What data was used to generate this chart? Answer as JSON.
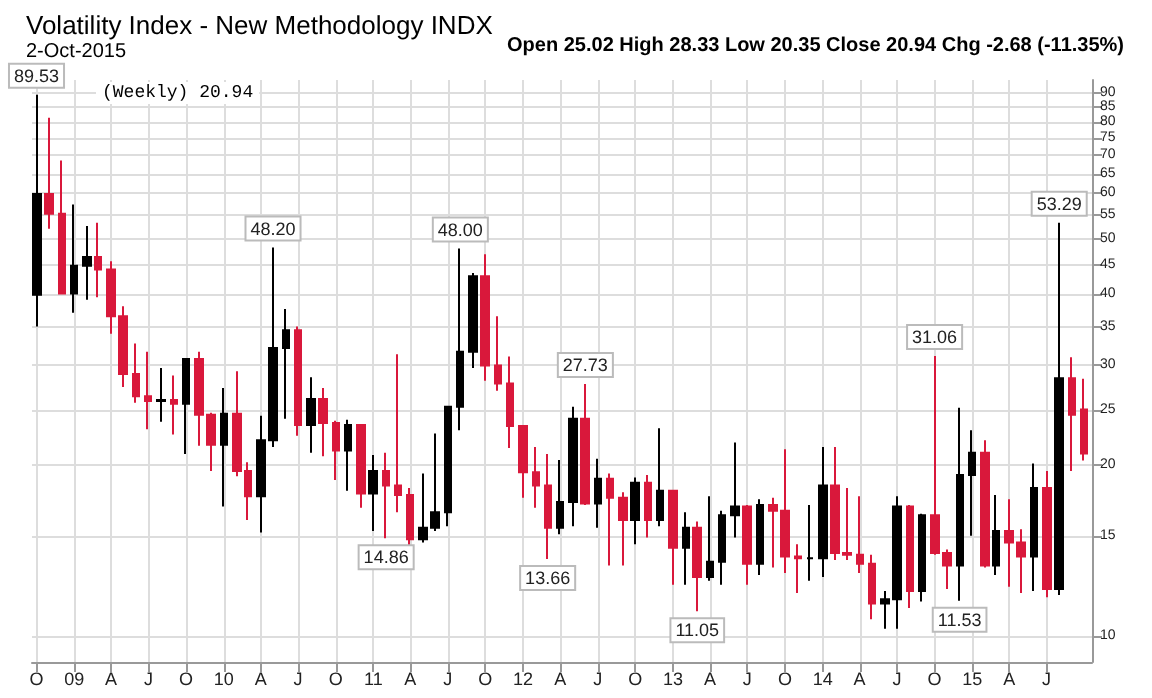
{
  "chart_data": {
    "type": "candlestick",
    "title": "Volatility Index - New Methodology INDX",
    "subtitle": "2-Oct-2015",
    "annotations": [
      "Open 25.02 High 28.33 Low 20.35 Close 20.94 Chg -2.68 (-11.35%)",
      "(Weekly) 20.94",
      {
        "text": "89.53",
        "x": "2008-10",
        "y": 89.53
      },
      {
        "text": "48.20",
        "x": "2010-05",
        "y": 48.2
      },
      {
        "text": "14.86",
        "x": "2011-02",
        "y": 14.86
      },
      {
        "text": "48.00",
        "x": "2011-08",
        "y": 48.0
      },
      {
        "text": "13.66",
        "x": "2012-03",
        "y": 13.66
      },
      {
        "text": "27.73",
        "x": "2012-06",
        "y": 27.73
      },
      {
        "text": "11.05",
        "x": "2013-03",
        "y": 11.05
      },
      {
        "text": "31.06",
        "x": "2014-10",
        "y": 31.06
      },
      {
        "text": "11.53",
        "x": "2014-12",
        "y": 11.53
      },
      {
        "text": "53.29",
        "x": "2015-08",
        "y": 53.29
      }
    ],
    "x": [
      "2008-10",
      "2008-11",
      "2008-12",
      "2009-01",
      "2009-02",
      "2009-03",
      "2009-04",
      "2009-05",
      "2009-06",
      "2009-07",
      "2009-08",
      "2009-09",
      "2009-10",
      "2009-11",
      "2009-12",
      "2010-01",
      "2010-02",
      "2010-03",
      "2010-04",
      "2010-05",
      "2010-06",
      "2010-07",
      "2010-08",
      "2010-09",
      "2010-10",
      "2010-11",
      "2010-12",
      "2011-01",
      "2011-02",
      "2011-03",
      "2011-04",
      "2011-05",
      "2011-06",
      "2011-07",
      "2011-08",
      "2011-09",
      "2011-10",
      "2011-11",
      "2011-12",
      "2012-01",
      "2012-02",
      "2012-03",
      "2012-04",
      "2012-05",
      "2012-06",
      "2012-07",
      "2012-08",
      "2012-09",
      "2012-10",
      "2012-11",
      "2012-12",
      "2013-01",
      "2013-02",
      "2013-03",
      "2013-04",
      "2013-05",
      "2013-06",
      "2013-07",
      "2013-08",
      "2013-09",
      "2013-10",
      "2013-11",
      "2013-12",
      "2014-01",
      "2014-02",
      "2014-03",
      "2014-04",
      "2014-05",
      "2014-06",
      "2014-07",
      "2014-08",
      "2014-09",
      "2014-10",
      "2014-11",
      "2014-12",
      "2015-01",
      "2015-02",
      "2015-03",
      "2015-04",
      "2015-05",
      "2015-06",
      "2015-07",
      "2015-08",
      "2015-09",
      "2015-10"
    ],
    "ohlc": [
      [
        39.8,
        89.53,
        35,
        59.9
      ],
      [
        59.9,
        81.5,
        52,
        55.3
      ],
      [
        55.3,
        68.6,
        40,
        40.0
      ],
      [
        40,
        57.4,
        37,
        44.8
      ],
      [
        44.8,
        52.6,
        39,
        46.4
      ],
      [
        46.4,
        53.3,
        39.4,
        44.1
      ],
      [
        44.1,
        45.6,
        34,
        36.5
      ],
      [
        36.5,
        38,
        27.4,
        28.9
      ],
      [
        28.9,
        32.7,
        25.7,
        26.4
      ],
      [
        26.4,
        31.6,
        23.1,
        25.9
      ],
      [
        25.9,
        29.6,
        23.8,
        26.0
      ],
      [
        26,
        28.7,
        22.6,
        25.6
      ],
      [
        25.6,
        30.7,
        20.9,
        30.7
      ],
      [
        30.7,
        31.6,
        21.6,
        24.5
      ],
      [
        24.5,
        24.7,
        19.5,
        21.7
      ],
      [
        21.7,
        27.3,
        16.9,
        24.6
      ],
      [
        24.6,
        29.2,
        19.1,
        19.5
      ],
      [
        19.5,
        20.2,
        16.0,
        17.6
      ],
      [
        17.6,
        24.4,
        15.2,
        22.1
      ],
      [
        22.1,
        48.2,
        21.5,
        32.1
      ],
      [
        32.1,
        37.6,
        24.1,
        34.5
      ],
      [
        34.5,
        35.0,
        22.5,
        23.5
      ],
      [
        23.5,
        28.5,
        21.0,
        26.1
      ],
      [
        26.1,
        27.3,
        20.7,
        23.7
      ],
      [
        23.7,
        23.9,
        18.8,
        21.2
      ],
      [
        21.2,
        24.0,
        18.0,
        23.5
      ],
      [
        23.5,
        23.5,
        16.8,
        17.8
      ],
      [
        17.8,
        20.8,
        15.3,
        19.5
      ],
      [
        19.5,
        21.0,
        14.86,
        18.4
      ],
      [
        18.4,
        31.3,
        16.5,
        17.7
      ],
      [
        17.7,
        18.2,
        14.3,
        14.8
      ],
      [
        14.8,
        19.3,
        14.6,
        15.5
      ],
      [
        15.5,
        22.7,
        15.3,
        16.5
      ],
      [
        16.5,
        25.3,
        15.6,
        25.3
      ],
      [
        25.3,
        48.0,
        23.0,
        31.6
      ],
      [
        31.6,
        43.5,
        29.6,
        42.9
      ],
      [
        42.9,
        46.9,
        28.1,
        29.9
      ],
      [
        29.9,
        36.5,
        27.0,
        27.8
      ],
      [
        27.8,
        31.0,
        21.4,
        23.4
      ],
      [
        23.4,
        23.5,
        17.5,
        19.4
      ],
      [
        19.4,
        21.5,
        16.8,
        18.4
      ],
      [
        18.4,
        20.9,
        13.66,
        15.5
      ],
      [
        15.5,
        20.4,
        15.1,
        17.2
      ],
      [
        17.2,
        25.3,
        15.6,
        24.1
      ],
      [
        24.1,
        27.73,
        17.0,
        17.1
      ],
      [
        17.1,
        20.5,
        15.5,
        18.9
      ],
      [
        18.9,
        19.3,
        13.3,
        17.5
      ],
      [
        17.5,
        17.9,
        13.3,
        16.0
      ],
      [
        16.0,
        19.0,
        14.5,
        18.6
      ],
      [
        18.6,
        19.2,
        14.9,
        16.0
      ],
      [
        16.0,
        23.2,
        15.6,
        18.0
      ],
      [
        18.0,
        18.0,
        12.3,
        14.3
      ],
      [
        14.3,
        16.5,
        12.3,
        15.5
      ],
      [
        15.5,
        15.9,
        11.05,
        12.7
      ],
      [
        12.7,
        17.6,
        12.5,
        13.5
      ],
      [
        13.5,
        16.6,
        12.3,
        16.3
      ],
      [
        16.3,
        21.9,
        14.9,
        16.9
      ],
      [
        16.9,
        17.0,
        12.3,
        13.4
      ],
      [
        13.4,
        17.4,
        12.8,
        17.0
      ],
      [
        17.0,
        17.5,
        13.2,
        16.6
      ],
      [
        16.6,
        21.3,
        12.9,
        13.8
      ],
      [
        13.8,
        14.5,
        11.9,
        13.7
      ],
      [
        13.7,
        17.0,
        12.5,
        13.7
      ],
      [
        13.7,
        21.5,
        12.7,
        18.4
      ],
      [
        18.4,
        21.5,
        13.6,
        14.0
      ],
      [
        14.0,
        18.2,
        13.6,
        13.9
      ],
      [
        13.9,
        17.6,
        12.9,
        13.4
      ],
      [
        13.4,
        13.9,
        10.7,
        11.4
      ],
      [
        11.4,
        12.0,
        10.3,
        11.6
      ],
      [
        11.6,
        17.6,
        10.3,
        16.9
      ],
      [
        16.9,
        17.0,
        11.2,
        12.0
      ],
      [
        12.0,
        16.4,
        11.5,
        16.3
      ],
      [
        16.3,
        31.06,
        13.9,
        14.0
      ],
      [
        14.0,
        14.2,
        12.1,
        13.3
      ],
      [
        13.3,
        25.2,
        11.53,
        19.2
      ],
      [
        19.2,
        23.0,
        15.0,
        21.0
      ],
      [
        21.0,
        22.1,
        13.2,
        13.3
      ],
      [
        13.3,
        17.7,
        12.8,
        15.3
      ],
      [
        15.3,
        17.4,
        12.2,
        14.6
      ],
      [
        14.6,
        15.4,
        11.9,
        13.8
      ],
      [
        13.8,
        20.1,
        12.0,
        18.2
      ],
      [
        18.2,
        19.5,
        11.7,
        12.1
      ],
      [
        12.1,
        53.29,
        11.8,
        28.4
      ],
      [
        28.4,
        30.9,
        19.5,
        24.5
      ],
      [
        25.02,
        28.33,
        20.35,
        20.94
      ]
    ],
    "colors": [
      "#000000",
      "#d9183b",
      "#d9183b",
      "#000000",
      "#000000",
      "#d9183b",
      "#d9183b",
      "#d9183b",
      "#d9183b",
      "#d9183b",
      "#000000",
      "#d9183b",
      "#000000",
      "#d9183b",
      "#d9183b",
      "#000000",
      "#d9183b",
      "#d9183b",
      "#000000",
      "#000000",
      "#000000",
      "#d9183b",
      "#000000",
      "#d9183b",
      "#d9183b",
      "#000000",
      "#d9183b",
      "#000000",
      "#d9183b",
      "#d9183b",
      "#d9183b",
      "#000000",
      "#000000",
      "#000000",
      "#000000",
      "#000000",
      "#d9183b",
      "#d9183b",
      "#d9183b",
      "#d9183b",
      "#d9183b",
      "#d9183b",
      "#000000",
      "#000000",
      "#d9183b",
      "#000000",
      "#d9183b",
      "#d9183b",
      "#000000",
      "#d9183b",
      "#000000",
      "#d9183b",
      "#000000",
      "#d9183b",
      "#000000",
      "#000000",
      "#000000",
      "#d9183b",
      "#000000",
      "#d9183b",
      "#d9183b",
      "#d9183b",
      "#000000",
      "#000000",
      "#d9183b",
      "#d9183b",
      "#d9183b",
      "#d9183b",
      "#000000",
      "#000000",
      "#d9183b",
      "#000000",
      "#d9183b",
      "#d9183b",
      "#000000",
      "#000000",
      "#d9183b",
      "#000000",
      "#d9183b",
      "#d9183b",
      "#000000",
      "#d9183b",
      "#000000",
      "#d9183b",
      "#d9183b"
    ],
    "xlim": [
      "2008-09-20",
      "2015-10-20"
    ],
    "xticks": [
      {
        "value": "2008-10",
        "label": "O"
      },
      {
        "value": "2009-01",
        "label": "09"
      },
      {
        "value": "2009-04",
        "label": "A"
      },
      {
        "value": "2009-07",
        "label": "J"
      },
      {
        "value": "2009-10",
        "label": "O"
      },
      {
        "value": "2010-01",
        "label": "10"
      },
      {
        "value": "2010-04",
        "label": "A"
      },
      {
        "value": "2010-07",
        "label": "J"
      },
      {
        "value": "2010-10",
        "label": "O"
      },
      {
        "value": "2011-01",
        "label": "11"
      },
      {
        "value": "2011-04",
        "label": "A"
      },
      {
        "value": "2011-07",
        "label": "J"
      },
      {
        "value": "2011-10",
        "label": "O"
      },
      {
        "value": "2012-01",
        "label": "12"
      },
      {
        "value": "2012-04",
        "label": "A"
      },
      {
        "value": "2012-07",
        "label": "J"
      },
      {
        "value": "2012-10",
        "label": "O"
      },
      {
        "value": "2013-01",
        "label": "13"
      },
      {
        "value": "2013-04",
        "label": "A"
      },
      {
        "value": "2013-07",
        "label": "J"
      },
      {
        "value": "2013-10",
        "label": "O"
      },
      {
        "value": "2014-01",
        "label": "14"
      },
      {
        "value": "2014-04",
        "label": "A"
      },
      {
        "value": "2014-07",
        "label": "J"
      },
      {
        "value": "2014-10",
        "label": "O"
      },
      {
        "value": "2015-01",
        "label": "15"
      },
      {
        "value": "2015-04",
        "label": "A"
      },
      {
        "value": "2015-07",
        "label": "J"
      }
    ],
    "ylim": [
      9,
      95
    ],
    "yticks": [
      10,
      15,
      20,
      25,
      30,
      35,
      40,
      45,
      50,
      55,
      60,
      65,
      70,
      75,
      80,
      85,
      90
    ],
    "log": "y",
    "grid": true
  }
}
